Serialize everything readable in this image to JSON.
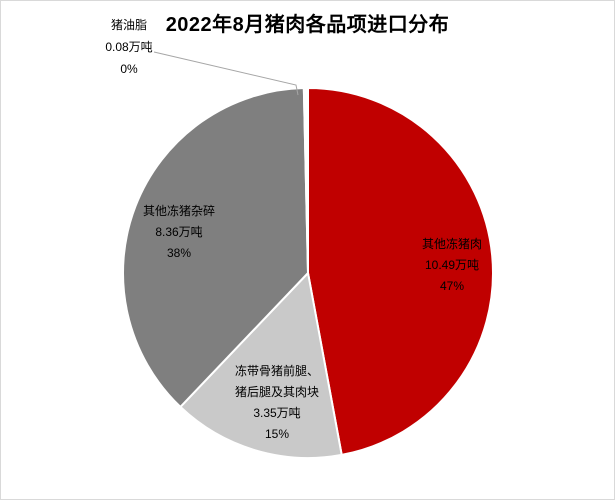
{
  "chart_data": {
    "type": "pie",
    "title": "2022年8月猪肉各品项进口分布",
    "unit": "万吨",
    "start_angle_deg": 0,
    "direction": "clockwise",
    "legend": "none",
    "grid": false,
    "label_style": "category name, tonnage and percent shown on each slice",
    "slices": [
      {
        "name": "其他冻猪肉",
        "value": 10.49,
        "percent_label": "47%",
        "amount_label": "10.49万吨",
        "color": "#C00000"
      },
      {
        "name": "冻带骨猪前腿、猪后腿及其肉块",
        "value": 3.35,
        "percent_label": "15%",
        "amount_label": "3.35万吨",
        "color": "#C9C9C9"
      },
      {
        "name": "其他冻猪杂碎",
        "value": 8.36,
        "percent_label": "38%",
        "amount_label": "8.36万吨",
        "color": "#7F7F7F"
      },
      {
        "name": "猪油脂",
        "value": 0.08,
        "percent_label": "0%",
        "amount_label": "0.08万吨",
        "color": "#FFFFFF"
      }
    ]
  },
  "labels": {
    "callout_pork_fat": {
      "lines": [
        "猪油脂",
        "0.08万吨",
        "0%"
      ]
    },
    "other_frozen_pork": {
      "lines": [
        "其他冻猪肉",
        "10.49万吨",
        "47%"
      ]
    },
    "frozen_leg_cuts": {
      "lines": [
        "冻带骨猪前腿、",
        "猪后腿及其肉块",
        "3.35万吨",
        "15%"
      ]
    },
    "other_frozen_offal": {
      "lines": [
        "其他冻猪杂碎",
        "8.36万吨",
        "38%"
      ]
    }
  },
  "colors": {
    "slice_red": "#C00000",
    "slice_dark_gray": "#7F7F7F",
    "slice_light_gray": "#C9C9C9",
    "leader_line": "#A6A6A6",
    "text": "#000000",
    "border": "#D9D9D9",
    "background": "#FFFFFF"
  }
}
